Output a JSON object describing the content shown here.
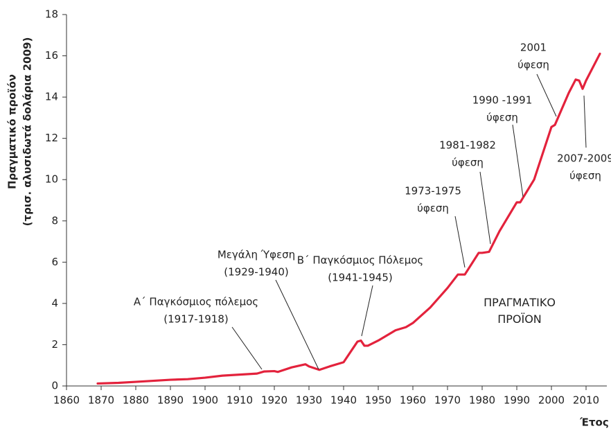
{
  "chart_data": {
    "type": "line",
    "y_label": [
      "Πραγματικό προϊόν",
      "(τρισ. αλυσιδωτά δολάρια 2009)"
    ],
    "x_label": "Έτος",
    "x": [
      1869,
      1875,
      1880,
      1885,
      1890,
      1895,
      1900,
      1905,
      1910,
      1915,
      1917,
      1920,
      1921,
      1925,
      1929,
      1930,
      1933,
      1936,
      1940,
      1943,
      1944,
      1945,
      1946,
      1947,
      1950,
      1955,
      1958,
      1960,
      1965,
      1970,
      1973,
      1975,
      1979,
      1980,
      1982,
      1985,
      1990,
      1991,
      1995,
      2000,
      2001,
      2005,
      2007,
      2008,
      2009,
      2010,
      2014
    ],
    "series": [
      {
        "name": "ΠΡΑΓΜΑΤΙΚΟ ΠΡΟΪΟΝ",
        "color": "#e3223c",
        "values": [
          0.12,
          0.15,
          0.2,
          0.25,
          0.3,
          0.33,
          0.4,
          0.5,
          0.55,
          0.6,
          0.7,
          0.72,
          0.68,
          0.9,
          1.05,
          0.95,
          0.78,
          0.95,
          1.15,
          1.9,
          2.15,
          2.2,
          1.95,
          1.95,
          2.2,
          2.7,
          2.85,
          3.05,
          3.8,
          4.75,
          5.4,
          5.4,
          6.45,
          6.45,
          6.5,
          7.5,
          8.9,
          8.9,
          10.0,
          12.55,
          12.65,
          14.2,
          14.85,
          14.8,
          14.4,
          14.8,
          16.1
        ]
      }
    ],
    "xlim": [
      1860,
      2016
    ],
    "ylim": [
      0,
      18
    ],
    "xticks": [
      1860,
      1870,
      1880,
      1890,
      1900,
      1910,
      1920,
      1930,
      1940,
      1950,
      1960,
      1970,
      1980,
      1990,
      2000,
      2010
    ],
    "yticks": [
      0,
      2,
      4,
      6,
      8,
      10,
      12,
      14,
      16,
      18
    ],
    "annotations": [
      {
        "text": [
          "Α΄ Παγκόσμιος πόλεμος",
          "(1917-1918)"
        ]
      },
      {
        "text": [
          "Μεγάλη Ύφεση",
          "(1929-1940)"
        ]
      },
      {
        "text": [
          "Β΄ Παγκόσμιος Πόλεμος",
          "(1941-1945)"
        ]
      },
      {
        "text": [
          "1973-1975",
          "ύφεση"
        ]
      },
      {
        "text": [
          "1981-1982",
          "ύφεση"
        ]
      },
      {
        "text": [
          "1990 -1991",
          "ύφεση"
        ]
      },
      {
        "text": [
          "2001",
          "ύφεση"
        ]
      },
      {
        "text": [
          "2007-2009",
          "ύφεση"
        ]
      }
    ]
  }
}
